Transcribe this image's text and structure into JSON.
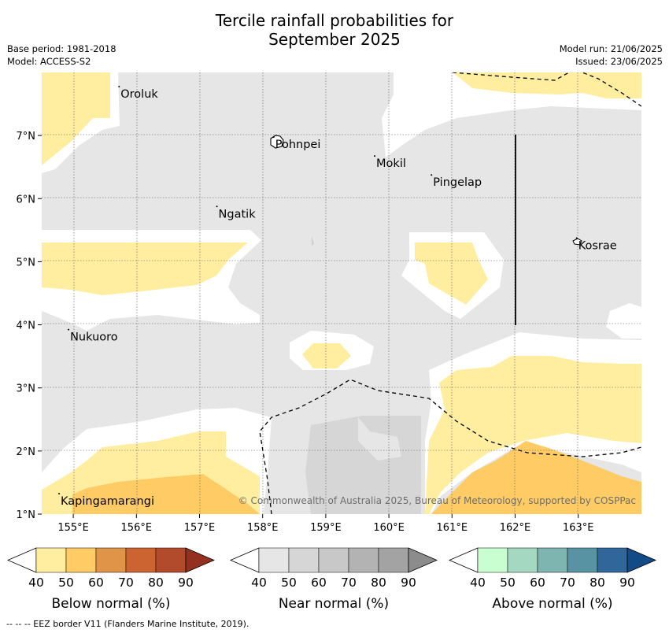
{
  "title_line1": "Tercile rainfall probabilities for",
  "title_line2": "September 2025",
  "base_period": "Base period: 1981-2018",
  "model": "Model: ACCESS-S2",
  "model_run": "Model run: 21/06/2025",
  "issued": "Issued: 23/06/2025",
  "lon_ticks": [
    "155°E",
    "156°E",
    "157°E",
    "158°E",
    "159°E",
    "160°E",
    "161°E",
    "162°E",
    "163°E"
  ],
  "lat_ticks": [
    "7°N",
    "6°N",
    "5°N",
    "4°N",
    "3°N",
    "2°N",
    "1°N"
  ],
  "places": [
    {
      "name": "Oroluk",
      "lon": 155.75,
      "lat": 7.7
    },
    {
      "name": "Pohnpei",
      "lon": 158.2,
      "lat": 6.9
    },
    {
      "name": "Mokil",
      "lon": 159.8,
      "lat": 6.6
    },
    {
      "name": "Pingelap",
      "lon": 160.7,
      "lat": 6.3
    },
    {
      "name": "Ngatik",
      "lon": 157.3,
      "lat": 5.8
    },
    {
      "name": "Kosrae",
      "lon": 163.0,
      "lat": 5.3
    },
    {
      "name": "Nukuoro",
      "lon": 154.95,
      "lat": 3.85
    },
    {
      "name": "Kapingamarangi",
      "lon": 154.8,
      "lat": 1.25
    }
  ],
  "copyright": "© Commonwealth of Australia 2025, Bureau of Meteorology, supported by COSPPac",
  "colorbars": [
    {
      "label": "Below normal (%)",
      "ticks": [
        "40",
        "50",
        "60",
        "70",
        "80",
        "90"
      ],
      "colors": [
        "#ffeda0",
        "#fecb65",
        "#e09448",
        "#cc6432",
        "#b24b2b",
        "#94301f"
      ]
    },
    {
      "label": "Near normal (%)",
      "ticks": [
        "40",
        "50",
        "60",
        "70",
        "80",
        "90"
      ],
      "colors": [
        "#e6e6e6",
        "#d6d6d6",
        "#c8c8c8",
        "#b3b3b3",
        "#a3a3a3",
        "#8c8c8c"
      ]
    },
    {
      "label": "Above normal (%)",
      "ticks": [
        "40",
        "50",
        "60",
        "70",
        "80",
        "90"
      ],
      "colors": [
        "#c9ffd0",
        "#a4d8c0",
        "#7fb5b1",
        "#5793a2",
        "#30669a",
        "#124b86"
      ]
    }
  ],
  "footnote": "--  --  -- EEZ border V11 (Flanders Marine Institute, 2019)."
}
